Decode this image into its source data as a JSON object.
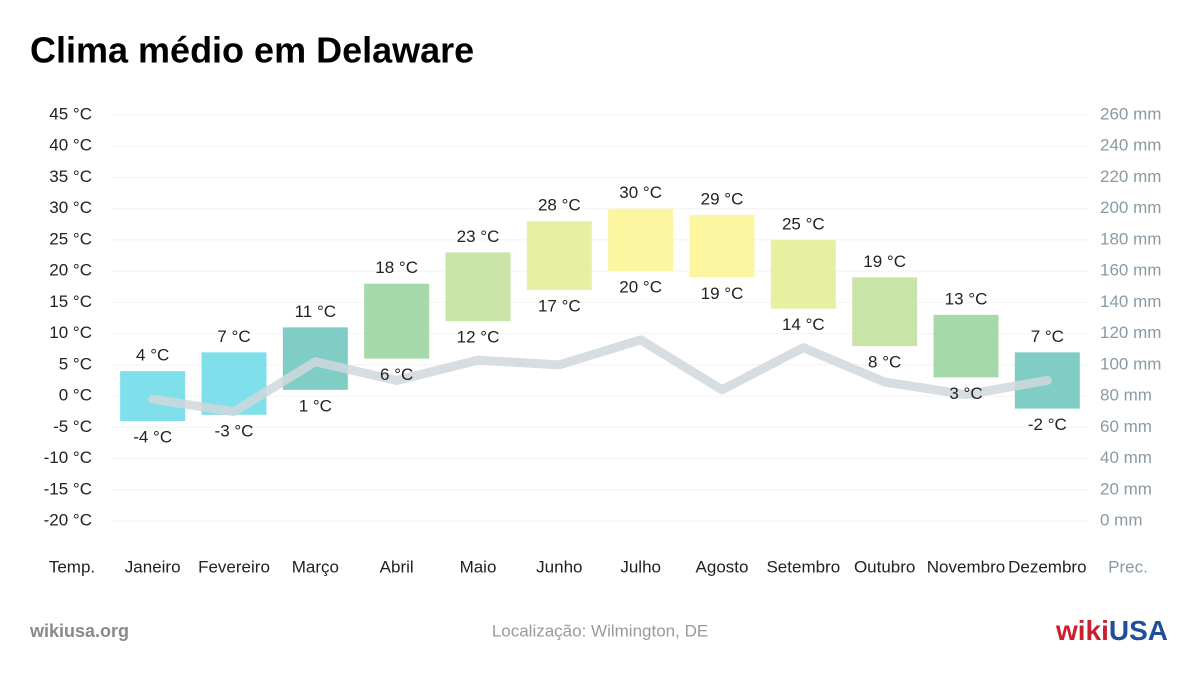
{
  "chart_data": {
    "type": "range_bar",
    "title": "Clima médio em Delaware",
    "categories": [
      "Janeiro",
      "Fevereiro",
      "Março",
      "Abril",
      "Maio",
      "Junho",
      "Julho",
      "Agosto",
      "Setembro",
      "Outubro",
      "Novembro",
      "Dezembro"
    ],
    "colors": [
      "#7fdfea",
      "#7fdfea",
      "#7fcdc5",
      "#a5d9a9",
      "#c9e4a7",
      "#e7efa1",
      "#fdf6a1",
      "#fdf6a1",
      "#e7efa1",
      "#c9e4a7",
      "#a5d9a9",
      "#7fcdc5"
    ],
    "series": [
      {
        "values": [
          4,
          7,
          11,
          18,
          23,
          28,
          30,
          29,
          25,
          19,
          13,
          7
        ],
        "value_labels": [
          "4 °C",
          "7 °C",
          "11 °C",
          "18 °C",
          "23 °C",
          "28 °C",
          "30 °C",
          "29 °C",
          "25 °C",
          "19 °C",
          "13 °C",
          "7 °C"
        ]
      },
      {
        "values": [
          -4,
          -3,
          1,
          6,
          12,
          17,
          20,
          19,
          14,
          8,
          3,
          -2
        ],
        "value_labels": [
          "-4 °C",
          "-3 °C",
          "1 °C",
          "6 °C",
          "12 °C",
          "17 °C",
          "20 °C",
          "19 °C",
          "14 °C",
          "8 °C",
          "3 °C",
          "-2 °C"
        ]
      },
      {
        "axis": "y2",
        "color": "#cfd8dd",
        "values": [
          78,
          70,
          102,
          90,
          103,
          100,
          116,
          84,
          111,
          89,
          81,
          90
        ]
      }
    ],
    "ylabel": "Temp.",
    "y2label": "Prec.",
    "ylim": [
      -20,
      45
    ],
    "yticks": [
      {
        "value": -20,
        "label": "-20 °C"
      },
      {
        "value": -15,
        "label": "-15 °C"
      },
      {
        "value": -10,
        "label": "-10 °C"
      },
      {
        "value": -5,
        "label": "-5 °C"
      },
      {
        "value": 0,
        "label": "0 °C"
      },
      {
        "value": 5,
        "label": "5 °C"
      },
      {
        "value": 10,
        "label": "10 °C"
      },
      {
        "value": 15,
        "label": "15 °C"
      },
      {
        "value": 20,
        "label": "20 °C"
      },
      {
        "value": 25,
        "label": "25 °C"
      },
      {
        "value": 30,
        "label": "30 °C"
      },
      {
        "value": 35,
        "label": "35 °C"
      },
      {
        "value": 40,
        "label": "40 °C"
      },
      {
        "value": 45,
        "label": "45 °C"
      }
    ],
    "y2lim": [
      0,
      260
    ],
    "y2ticks": [
      {
        "value": 0,
        "label": "0 mm"
      },
      {
        "value": 20,
        "label": "20 mm"
      },
      {
        "value": 40,
        "label": "40 mm"
      },
      {
        "value": 60,
        "label": "60 mm"
      },
      {
        "value": 80,
        "label": "80 mm"
      },
      {
        "value": 100,
        "label": "100 mm"
      },
      {
        "value": 120,
        "label": "120 mm"
      },
      {
        "value": 140,
        "label": "140 mm"
      },
      {
        "value": 160,
        "label": "160 mm"
      },
      {
        "value": 180,
        "label": "180 mm"
      },
      {
        "value": 200,
        "label": "200 mm"
      },
      {
        "value": 220,
        "label": "220 mm"
      },
      {
        "value": 240,
        "label": "240 mm"
      },
      {
        "value": 260,
        "label": "260 mm"
      }
    ],
    "grid": true,
    "source": "wikiusa.org",
    "location": "Localização: Wilmington, DE",
    "logo": [
      "wiki",
      "USA"
    ]
  }
}
